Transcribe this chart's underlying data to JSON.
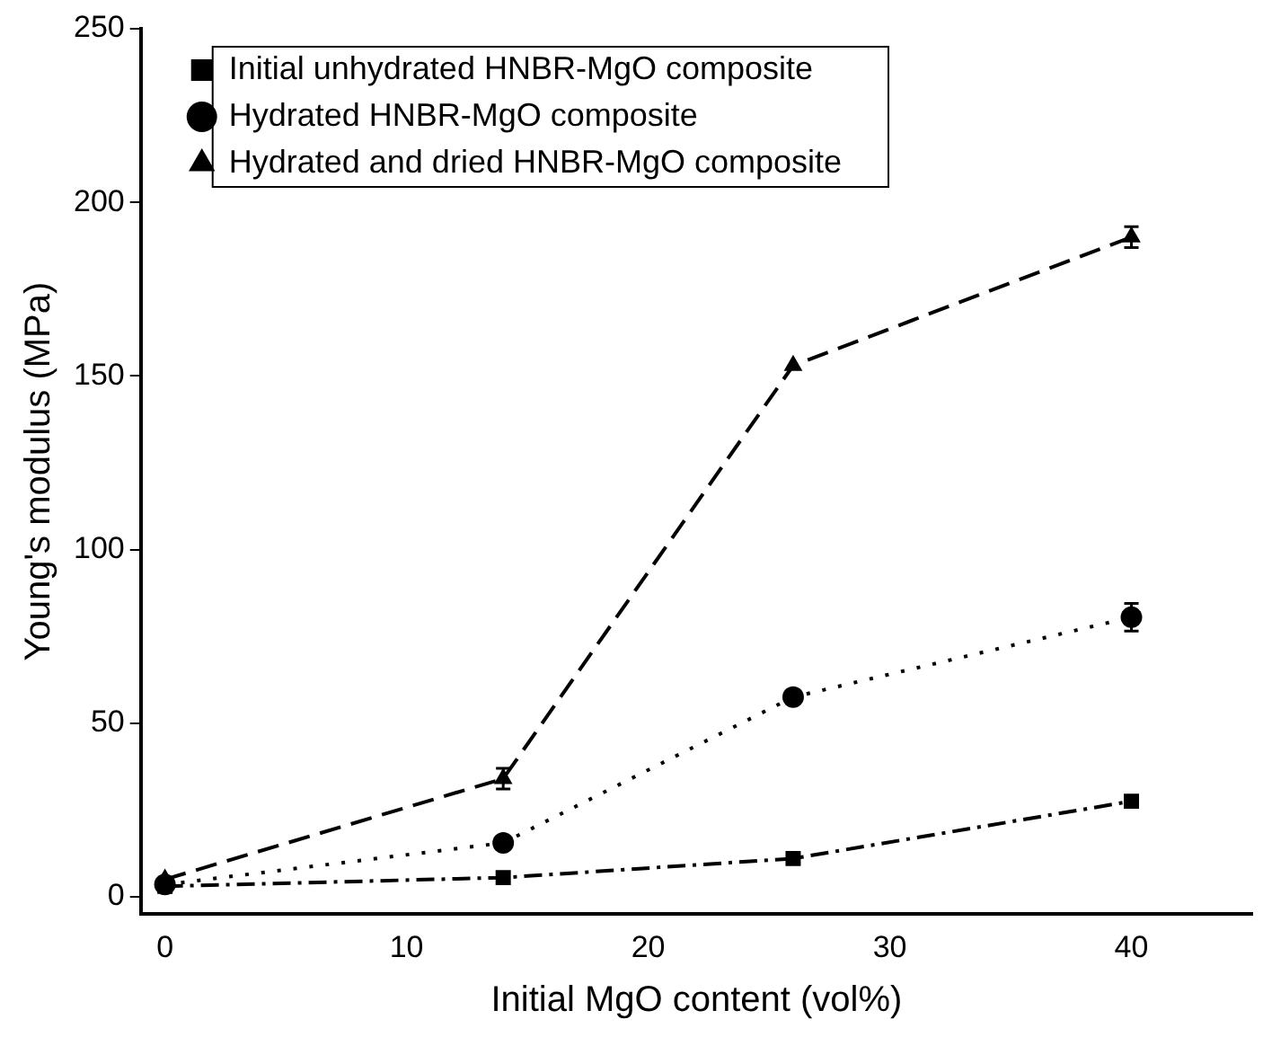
{
  "chart_data": {
    "type": "line",
    "xlabel": "Initial MgO content (vol%)",
    "ylabel": "Young's modulus (MPa)",
    "x": [
      0,
      14,
      26,
      40
    ],
    "xlim": [
      -1,
      45
    ],
    "xticks": [
      0,
      10,
      20,
      30,
      40
    ],
    "ylim": [
      -5,
      250
    ],
    "yticks": [
      0,
      50,
      100,
      150,
      200,
      250
    ],
    "grid": false,
    "legend": "top left",
    "series": [
      {
        "name": "Initial unhydrated HNBR-MgO composite",
        "color": "#000000",
        "marker": "square",
        "line_style": "dashdot",
        "values": [
          3,
          5.5,
          11,
          27.5
        ]
      },
      {
        "name": "Hydrated HNBR-MgO composite",
        "color": "#000000",
        "marker": "circle",
        "line_style": "dotted",
        "values": [
          3.5,
          15.5,
          57.5,
          80.5
        ],
        "errors": [
          null,
          1,
          2,
          4
        ]
      },
      {
        "name": "Hydrated and dried HNBR-MgO composite",
        "color": "#000000",
        "marker": "triangle",
        "line_style": "dashed",
        "values": [
          5,
          34,
          153,
          190
        ],
        "errors": [
          null,
          3,
          null,
          3
        ]
      }
    ]
  }
}
